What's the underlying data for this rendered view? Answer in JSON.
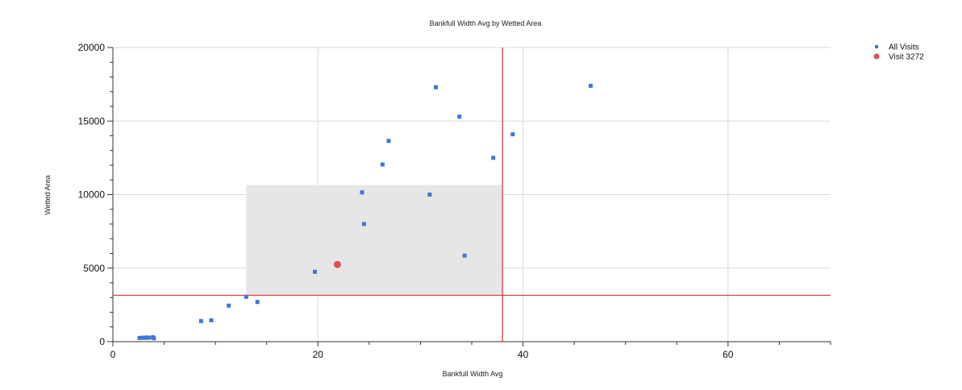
{
  "chart_data": {
    "type": "scatter",
    "title": "Bankfull Width Avg by Wetted Area",
    "xlabel": "Bankfull Width Avg",
    "ylabel": "Wetted Area",
    "xlim": [
      0,
      70
    ],
    "ylim": [
      0,
      20000
    ],
    "x_ticks": [
      0,
      20,
      40,
      60
    ],
    "y_ticks": [
      0,
      5000,
      10000,
      15000,
      20000
    ],
    "x_tick_labels": [
      "0",
      "20",
      "40",
      "60"
    ],
    "y_tick_labels": [
      "0",
      "5000",
      "10000",
      "15000",
      "20000"
    ],
    "grid": true,
    "legend_position": "top-right",
    "shaded_region": {
      "x": [
        13,
        38
      ],
      "y": [
        3150,
        10650
      ],
      "color": "#e6e6e6"
    },
    "reference_lines": [
      {
        "orientation": "vertical",
        "x": 38,
        "color": "#e03c3c"
      },
      {
        "orientation": "horizontal",
        "y": 3150,
        "color": "#e03c3c"
      }
    ],
    "series": [
      {
        "name": "All Visits",
        "color": "#3c78d8",
        "marker": "square",
        "points": [
          [
            2.6,
            250
          ],
          [
            2.9,
            270
          ],
          [
            3.1,
            260
          ],
          [
            3.3,
            280
          ],
          [
            3.5,
            270
          ],
          [
            3.9,
            300
          ],
          [
            4.0,
            230
          ],
          [
            8.6,
            1400
          ],
          [
            9.6,
            1450
          ],
          [
            11.3,
            2450
          ],
          [
            13.0,
            3050
          ],
          [
            14.1,
            2700
          ],
          [
            19.7,
            4750
          ],
          [
            24.3,
            10150
          ],
          [
            24.5,
            8000
          ],
          [
            26.3,
            12050
          ],
          [
            26.9,
            13650
          ],
          [
            30.9,
            10000
          ],
          [
            31.5,
            17300
          ],
          [
            33.8,
            15300
          ],
          [
            34.3,
            5850
          ],
          [
            37.1,
            12500
          ],
          [
            39.0,
            14100
          ],
          [
            46.6,
            17400
          ]
        ]
      },
      {
        "name": "Visit 3272",
        "color": "#e05050",
        "marker": "circle",
        "points": [
          [
            21.9,
            5250
          ]
        ]
      }
    ]
  }
}
